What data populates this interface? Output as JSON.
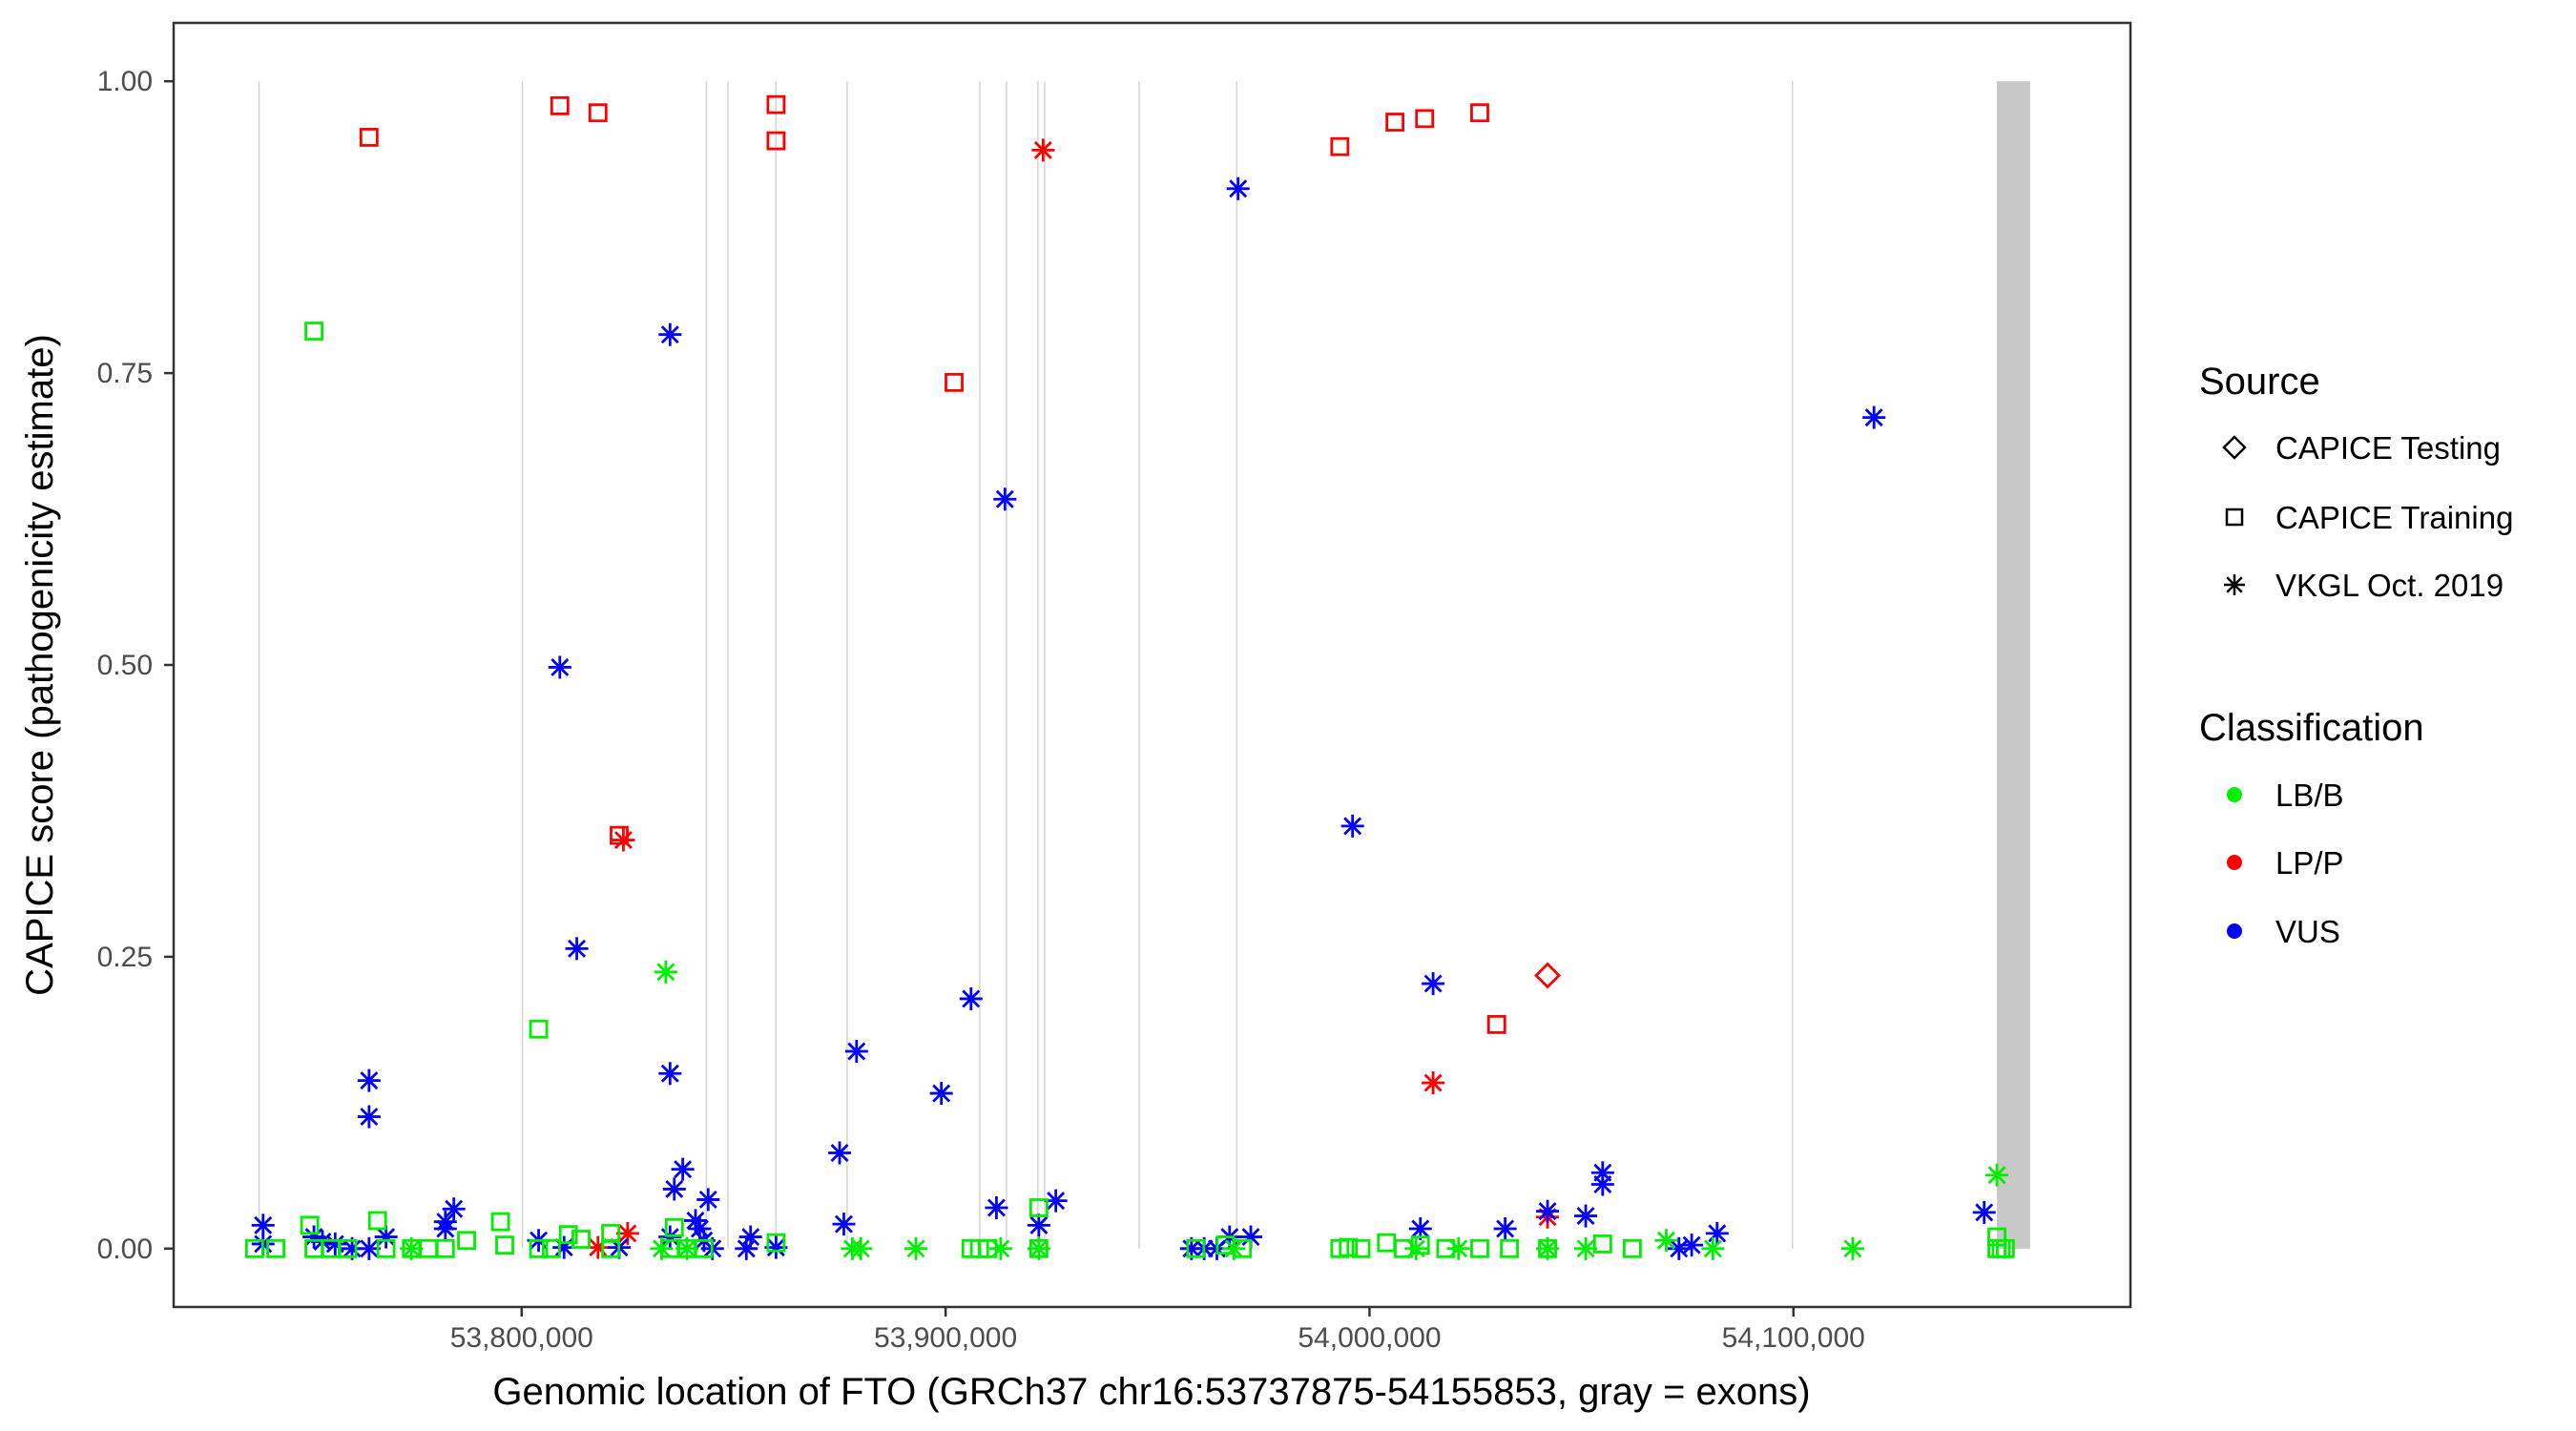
{
  "chart_data": {
    "type": "scatter",
    "title": "",
    "xlabel": "Genomic location of FTO (GRCh37 chr16:53737875-54155853, gray = exons)",
    "ylabel": "CAPICE score (pathogenicity estimate)",
    "xlim": [
      53717900,
      54179500
    ],
    "ylim": [
      -0.05,
      1.05
    ],
    "x_ticks": [
      53800000,
      53900000,
      54000000,
      54100000
    ],
    "x_tick_labels": [
      "53,800,000",
      "53,900,000",
      "54,000,000",
      "54,100,000"
    ],
    "y_ticks": [
      0,
      0.25,
      0.5,
      0.75,
      1.0
    ],
    "y_tick_labels": [
      "0.00",
      "0.25",
      "0.50",
      "0.75",
      "1.00"
    ],
    "grid": false,
    "exons": [
      [
        53737875,
        53737900
      ],
      [
        53800000,
        53800050
      ],
      [
        53843400,
        53843450
      ],
      [
        53848500,
        53848550
      ],
      [
        53859800,
        53860100
      ],
      [
        53876600,
        53876650
      ],
      [
        53907900,
        53907950
      ],
      [
        53914200,
        53914250
      ],
      [
        53921600,
        53921650
      ],
      [
        53923200,
        53923250
      ],
      [
        53945500,
        53945550
      ],
      [
        53968500,
        53968550
      ],
      [
        54099600,
        54099650
      ],
      [
        54148000,
        54155853
      ]
    ],
    "legend": {
      "placement": "right",
      "source_title": "Source",
      "sources": [
        "CAPICE Testing",
        "CAPICE Training",
        "VKGL Oct. 2019"
      ],
      "source_shapes": [
        "diamond",
        "square",
        "asterisk"
      ],
      "class_title": "Classification",
      "classes": [
        "LB/B",
        "LP/P",
        "VUS"
      ],
      "class_colors": [
        "#00ee00",
        "#ff0000",
        "#0000ff"
      ]
    },
    "point_fields": [
      "position",
      "score",
      "source_index",
      "class_index"
    ],
    "points": [
      [
        53764000,
        0.952,
        1,
        1
      ],
      [
        53809000,
        0.979,
        1,
        1
      ],
      [
        53818000,
        0.973,
        1,
        1
      ],
      [
        53860000,
        0.98,
        1,
        1
      ],
      [
        53860000,
        0.949,
        1,
        1
      ],
      [
        53902000,
        0.742,
        1,
        1
      ],
      [
        53993000,
        0.944,
        1,
        1
      ],
      [
        54006000,
        0.965,
        1,
        1
      ],
      [
        54013000,
        0.968,
        1,
        1
      ],
      [
        54026000,
        0.973,
        1,
        1
      ],
      [
        54030000,
        0.192,
        1,
        1
      ],
      [
        53823000,
        0.354,
        1,
        1
      ],
      [
        54042000,
        0.234,
        0,
        1
      ],
      [
        53923000,
        0.941,
        2,
        1
      ],
      [
        53824000,
        0.35,
        2,
        1
      ],
      [
        53825000,
        0.013,
        2,
        1
      ],
      [
        53818000,
        0.001,
        2,
        1
      ],
      [
        54015000,
        0.142,
        2,
        1
      ],
      [
        54042000,
        0.027,
        2,
        1
      ],
      [
        53969000,
        0.908,
        2,
        2
      ],
      [
        53835000,
        0.783,
        2,
        2
      ],
      [
        54119000,
        0.712,
        2,
        2
      ],
      [
        53914000,
        0.642,
        2,
        2
      ],
      [
        53809000,
        0.498,
        2,
        2
      ],
      [
        53996000,
        0.362,
        2,
        2
      ],
      [
        53813000,
        0.257,
        2,
        2
      ],
      [
        53906000,
        0.214,
        2,
        2
      ],
      [
        54015000,
        0.227,
        2,
        2
      ],
      [
        53835000,
        0.15,
        2,
        2
      ],
      [
        53764000,
        0.144,
        2,
        2
      ],
      [
        53764000,
        0.113,
        2,
        2
      ],
      [
        53879000,
        0.169,
        2,
        2
      ],
      [
        53899000,
        0.133,
        2,
        2
      ],
      [
        53875000,
        0.082,
        2,
        2
      ],
      [
        54055000,
        0.065,
        2,
        2
      ],
      [
        54055000,
        0.055,
        2,
        2
      ],
      [
        53838000,
        0.068,
        2,
        2
      ],
      [
        53836000,
        0.051,
        2,
        2
      ],
      [
        53912000,
        0.035,
        2,
        2
      ],
      [
        53926000,
        0.041,
        2,
        2
      ],
      [
        53922000,
        0.02,
        2,
        2
      ],
      [
        53876000,
        0.021,
        2,
        2
      ],
      [
        54145000,
        0.031,
        2,
        2
      ],
      [
        54042000,
        0.032,
        2,
        2
      ],
      [
        54051000,
        0.028,
        2,
        2
      ],
      [
        54032000,
        0.017,
        2,
        2
      ],
      [
        54012000,
        0.017,
        2,
        2
      ],
      [
        54082000,
        0.013,
        2,
        2
      ],
      [
        53739000,
        0.02,
        2,
        2
      ],
      [
        53739000,
        0.004,
        2,
        2
      ],
      [
        53784000,
        0.034,
        2,
        2
      ],
      [
        53782000,
        0.023,
        2,
        2
      ],
      [
        53782000,
        0.017,
        2,
        2
      ],
      [
        53844000,
        0.042,
        2,
        2
      ],
      [
        53804000,
        0.007,
        2,
        2
      ],
      [
        53810000,
        0.001,
        2,
        2
      ],
      [
        53823000,
        0.001,
        2,
        2
      ],
      [
        53854000,
        0.01,
        2,
        2
      ],
      [
        53860000,
        0.001,
        2,
        2
      ],
      [
        53853000,
        0.0,
        2,
        2
      ],
      [
        53958000,
        0.0,
        2,
        2
      ],
      [
        53961000,
        0.0,
        2,
        2
      ],
      [
        53964000,
        0.0,
        2,
        2
      ],
      [
        53967000,
        0.01,
        2,
        2
      ],
      [
        53972000,
        0.01,
        2,
        2
      ],
      [
        54073000,
        0.0,
        2,
        2
      ],
      [
        54076000,
        0.003,
        2,
        2
      ],
      [
        53751000,
        0.01,
        2,
        2
      ],
      [
        53756000,
        0.004,
        2,
        2
      ],
      [
        53753000,
        0.006,
        2,
        2
      ],
      [
        53764000,
        0.0,
        2,
        2
      ],
      [
        53768000,
        0.01,
        2,
        2
      ],
      [
        53760000,
        0.0,
        2,
        2
      ],
      [
        53835000,
        0.01,
        2,
        2
      ],
      [
        53842000,
        0.017,
        2,
        2
      ],
      [
        53843000,
        0.007,
        2,
        2
      ],
      [
        53845000,
        0.0,
        2,
        2
      ],
      [
        53841000,
        0.024,
        2,
        2
      ],
      [
        53751000,
        0.786,
        1,
        0
      ],
      [
        53804000,
        0.188,
        1,
        0
      ],
      [
        53750000,
        0.02,
        1,
        0
      ],
      [
        53766000,
        0.024,
        1,
        0
      ],
      [
        53795000,
        0.023,
        1,
        0
      ],
      [
        53821000,
        0.013,
        1,
        0
      ],
      [
        53836000,
        0.018,
        1,
        0
      ],
      [
        53922000,
        0.035,
        1,
        0
      ],
      [
        54148000,
        0.01,
        1,
        0
      ],
      [
        53737000,
        0.0,
        1,
        0
      ],
      [
        53742000,
        0.0,
        1,
        0
      ],
      [
        53751000,
        0.0,
        1,
        0
      ],
      [
        53755000,
        0.0,
        1,
        0
      ],
      [
        53759000,
        0.0,
        1,
        0
      ],
      [
        53768000,
        0.0,
        1,
        0
      ],
      [
        53774000,
        0.0,
        1,
        0
      ],
      [
        53778000,
        0.0,
        1,
        0
      ],
      [
        53782000,
        0.0,
        1,
        0
      ],
      [
        53787000,
        0.007,
        1,
        0
      ],
      [
        53796000,
        0.003,
        1,
        0
      ],
      [
        53804000,
        0.0,
        1,
        0
      ],
      [
        53807000,
        0.0,
        1,
        0
      ],
      [
        53811000,
        0.012,
        1,
        0
      ],
      [
        53814000,
        0.008,
        1,
        0
      ],
      [
        53821000,
        0.0,
        1,
        0
      ],
      [
        53835000,
        0.0,
        1,
        0
      ],
      [
        53839000,
        0.0,
        1,
        0
      ],
      [
        53843000,
        0.0,
        1,
        0
      ],
      [
        53860000,
        0.005,
        1,
        0
      ],
      [
        53906000,
        0.0,
        1,
        0
      ],
      [
        53908000,
        0.0,
        1,
        0
      ],
      [
        53910000,
        0.0,
        1,
        0
      ],
      [
        53922000,
        0.0,
        1,
        0
      ],
      [
        53959000,
        0.0,
        1,
        0
      ],
      [
        53966000,
        0.003,
        1,
        0
      ],
      [
        53970000,
        0.0,
        1,
        0
      ],
      [
        53993000,
        0.0,
        1,
        0
      ],
      [
        53995000,
        0.001,
        1,
        0
      ],
      [
        53998000,
        0.0,
        1,
        0
      ],
      [
        54004000,
        0.005,
        1,
        0
      ],
      [
        54008000,
        0.0,
        1,
        0
      ],
      [
        54012000,
        0.003,
        1,
        0
      ],
      [
        54018000,
        0.0,
        1,
        0
      ],
      [
        54026000,
        0.0,
        1,
        0
      ],
      [
        54033000,
        0.0,
        1,
        0
      ],
      [
        54042000,
        0.0,
        1,
        0
      ],
      [
        54055000,
        0.004,
        1,
        0
      ],
      [
        54062000,
        0.0,
        1,
        0
      ],
      [
        54148000,
        0.0,
        1,
        0
      ],
      [
        54149000,
        0.0,
        1,
        0
      ],
      [
        54150000,
        0.0,
        1,
        0
      ],
      [
        53834000,
        0.237,
        2,
        0
      ],
      [
        54148000,
        0.063,
        2,
        0
      ],
      [
        54114000,
        0.0,
        2,
        0
      ],
      [
        54070000,
        0.007,
        2,
        0
      ],
      [
        53774000,
        0.0,
        2,
        0
      ],
      [
        53833000,
        0.0,
        2,
        0
      ],
      [
        53839000,
        0.0,
        2,
        0
      ],
      [
        53878000,
        0.0,
        2,
        0
      ],
      [
        53880000,
        0.0,
        2,
        0
      ],
      [
        53893000,
        0.0,
        2,
        0
      ],
      [
        53913000,
        0.0,
        2,
        0
      ],
      [
        53922000,
        0.0,
        2,
        0
      ],
      [
        53968000,
        0.0,
        2,
        0
      ],
      [
        54011000,
        0.0,
        2,
        0
      ],
      [
        54021000,
        0.0,
        2,
        0
      ],
      [
        54042000,
        0.0,
        2,
        0
      ],
      [
        54051000,
        0.0,
        2,
        0
      ],
      [
        54081000,
        0.0,
        2,
        0
      ]
    ]
  }
}
